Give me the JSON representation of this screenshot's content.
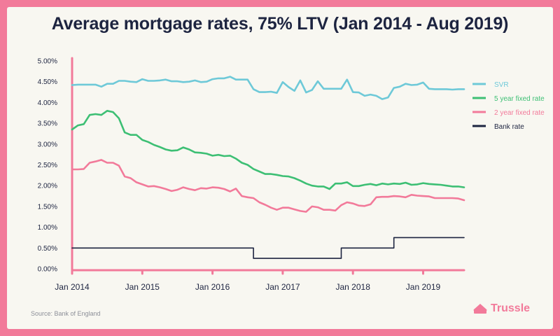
{
  "chart_data": {
    "type": "line",
    "title": "Average mortgage rates, 75% LTV (Jan 2014 - Aug 2019)",
    "xlabel": "",
    "ylabel": "",
    "x_start": "2014-01",
    "x_end": "2019-08",
    "x_ticks": [
      {
        "x": "2014-01",
        "label": "Jan 2014"
      },
      {
        "x": "2015-01",
        "label": "Jan 2015"
      },
      {
        "x": "2016-01",
        "label": "Jan 2016"
      },
      {
        "x": "2017-01",
        "label": "Jan 2017"
      },
      {
        "x": "2018-01",
        "label": "Jan 2018"
      },
      {
        "x": "2019-01",
        "label": "Jan 2019"
      }
    ],
    "ylim": [
      0,
      5
    ],
    "y_ticks": [
      "0.00%",
      "0.50%",
      "1.00%",
      "1.50%",
      "2.00%",
      "2.50%",
      "3.00%",
      "3.50%",
      "4.00%",
      "4.50%",
      "5.00%"
    ],
    "grid": false,
    "legend_position": "right",
    "series": [
      {
        "name": "SVR",
        "color": "#6ec9d8",
        "values": [
          4.42,
          4.43,
          4.43,
          4.43,
          4.43,
          4.38,
          4.45,
          4.45,
          4.52,
          4.52,
          4.5,
          4.49,
          4.56,
          4.52,
          4.52,
          4.53,
          4.55,
          4.51,
          4.51,
          4.49,
          4.5,
          4.53,
          4.49,
          4.5,
          4.56,
          4.58,
          4.58,
          4.62,
          4.55,
          4.55,
          4.55,
          4.32,
          4.25,
          4.25,
          4.26,
          4.23,
          4.49,
          4.37,
          4.28,
          4.53,
          4.24,
          4.3,
          4.51,
          4.33,
          4.33,
          4.33,
          4.33,
          4.55,
          4.25,
          4.24,
          4.16,
          4.19,
          4.16,
          4.08,
          4.12,
          4.35,
          4.38,
          4.45,
          4.42,
          4.43,
          4.48,
          4.33,
          4.32,
          4.32,
          4.32,
          4.31,
          4.32,
          4.32
        ]
      },
      {
        "name": "5 year fixed rate",
        "color": "#3dbf74",
        "values": [
          3.35,
          3.45,
          3.48,
          3.7,
          3.72,
          3.7,
          3.8,
          3.77,
          3.62,
          3.28,
          3.22,
          3.22,
          3.1,
          3.05,
          2.98,
          2.93,
          2.87,
          2.84,
          2.85,
          2.92,
          2.87,
          2.8,
          2.79,
          2.77,
          2.72,
          2.74,
          2.71,
          2.72,
          2.65,
          2.55,
          2.5,
          2.4,
          2.34,
          2.28,
          2.28,
          2.26,
          2.23,
          2.22,
          2.18,
          2.12,
          2.05,
          2.0,
          1.98,
          1.98,
          1.92,
          2.05,
          2.05,
          2.08,
          1.99,
          1.99,
          2.02,
          2.04,
          2.01,
          2.05,
          2.03,
          2.05,
          2.04,
          2.07,
          2.02,
          2.03,
          2.06,
          2.04,
          2.03,
          2.02,
          2.0,
          1.98,
          1.98,
          1.96
        ]
      },
      {
        "name": "2 year fixed rate",
        "color": "#f27a9a",
        "values": [
          2.39,
          2.39,
          2.4,
          2.55,
          2.58,
          2.62,
          2.55,
          2.55,
          2.48,
          2.22,
          2.18,
          2.08,
          2.03,
          1.98,
          1.99,
          1.96,
          1.92,
          1.87,
          1.9,
          1.96,
          1.92,
          1.89,
          1.94,
          1.93,
          1.96,
          1.95,
          1.92,
          1.86,
          1.93,
          1.75,
          1.72,
          1.7,
          1.6,
          1.54,
          1.47,
          1.42,
          1.47,
          1.47,
          1.43,
          1.39,
          1.37,
          1.5,
          1.48,
          1.42,
          1.42,
          1.4,
          1.53,
          1.6,
          1.57,
          1.52,
          1.51,
          1.55,
          1.72,
          1.73,
          1.73,
          1.75,
          1.74,
          1.72,
          1.78,
          1.76,
          1.75,
          1.74,
          1.7,
          1.7,
          1.7,
          1.7,
          1.69,
          1.65
        ]
      },
      {
        "name": "Bank rate",
        "color": "#1d2440",
        "step": true,
        "values": [
          0.5,
          0.5,
          0.5,
          0.5,
          0.5,
          0.5,
          0.5,
          0.5,
          0.5,
          0.5,
          0.5,
          0.5,
          0.5,
          0.5,
          0.5,
          0.5,
          0.5,
          0.5,
          0.5,
          0.5,
          0.5,
          0.5,
          0.5,
          0.5,
          0.5,
          0.5,
          0.5,
          0.5,
          0.5,
          0.5,
          0.5,
          0.25,
          0.25,
          0.25,
          0.25,
          0.25,
          0.25,
          0.25,
          0.25,
          0.25,
          0.25,
          0.25,
          0.25,
          0.25,
          0.25,
          0.25,
          0.5,
          0.5,
          0.5,
          0.5,
          0.5,
          0.5,
          0.5,
          0.5,
          0.5,
          0.75,
          0.75,
          0.75,
          0.75,
          0.75,
          0.75,
          0.75,
          0.75,
          0.75,
          0.75,
          0.75,
          0.75,
          0.75
        ]
      }
    ]
  },
  "footer": {
    "source": "Source: Bank of England",
    "brand": "Trussle"
  },
  "colors": {
    "frame": "#f27a9a",
    "card": "#f8f7f1",
    "text": "#1d2440",
    "axis": "#f27a9a"
  }
}
